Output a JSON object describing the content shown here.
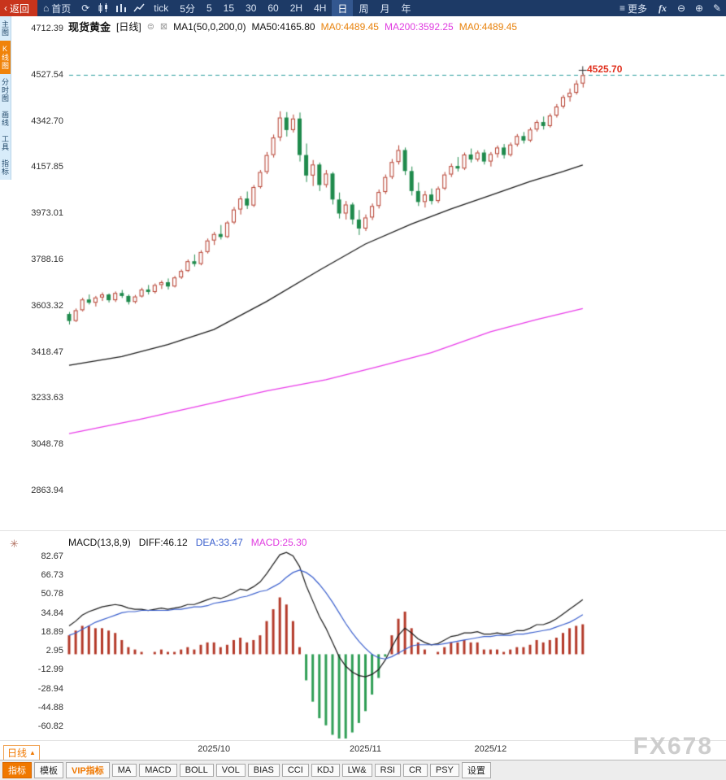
{
  "icons": {
    "back_arrow": "‹",
    "home": "⌂",
    "refresh": "⟳",
    "more": "≡",
    "zoom_out": "⊖",
    "zoom_in": "⊕",
    "pencil": "✎",
    "gear": "✳",
    "checkbox": "⊠",
    "link": "⊜",
    "up_triangle": "▲"
  },
  "topbar": {
    "back_label": "返回",
    "home_label": "首页",
    "tick_label": "tick",
    "periods": [
      {
        "label": "5分",
        "active": false
      },
      {
        "label": "5",
        "active": false
      },
      {
        "label": "15",
        "active": false
      },
      {
        "label": "30",
        "active": false
      },
      {
        "label": "60",
        "active": false
      },
      {
        "label": "2H",
        "active": false
      },
      {
        "label": "4H",
        "active": false
      },
      {
        "label": "日",
        "active": true
      },
      {
        "label": "周",
        "active": false
      },
      {
        "label": "月",
        "active": false
      },
      {
        "label": "年",
        "active": false
      }
    ],
    "more_label": "更多",
    "fx_label": "fx"
  },
  "sidebar": {
    "items": [
      {
        "label": "主图",
        "active": false
      },
      {
        "label": "K线图",
        "active": true
      },
      {
        "label": "分时图",
        "active": false
      },
      {
        "label": "画线",
        "active": false
      },
      {
        "label": "工具",
        "active": false
      },
      {
        "label": "指标",
        "active": false
      }
    ]
  },
  "legend": {
    "symbol": "现货黄金",
    "period_tag": "[日线]",
    "ma_param": "MA1(50,0,200,0)",
    "ma50": "MA50:4165.80",
    "ma0_a": "MA0:4489.45",
    "ma200": "MA200:3592.25",
    "ma0_b": "MA0:4489.45"
  },
  "macd_header": {
    "title": "MACD(13,8,9)",
    "diff": "DIFF:46.12",
    "dea": "DEA:33.47",
    "macd": "MACD:25.30"
  },
  "bottom": {
    "period_label": "日线",
    "watermark": "FX678",
    "tabs": [
      {
        "label": "指标",
        "style": "active"
      },
      {
        "label": "模板",
        "style": "plain"
      },
      {
        "label": "VIP指标",
        "style": "vip"
      },
      {
        "label": "MA",
        "style": "plain"
      },
      {
        "label": "MACD",
        "style": "plain"
      },
      {
        "label": "BOLL",
        "style": "plain"
      },
      {
        "label": "VOL",
        "style": "plain"
      },
      {
        "label": "BIAS",
        "style": "plain"
      },
      {
        "label": "CCI",
        "style": "plain"
      },
      {
        "label": "KDJ",
        "style": "plain"
      },
      {
        "label": "LW&",
        "style": "plain"
      },
      {
        "label": "RSI",
        "style": "plain"
      },
      {
        "label": "CR",
        "style": "plain"
      },
      {
        "label": "PSY",
        "style": "plain"
      },
      {
        "label": "设置",
        "style": "plain"
      }
    ]
  },
  "chart_data": {
    "type": "candlestick+macd",
    "title": "现货黄金 日线",
    "colors": {
      "up": "#b43a2a",
      "down": "#1f8a4c",
      "ma50": "#1a1a1a",
      "ma200": "#e93ce9",
      "dashed": "#2a9d9d",
      "diff": "#1a1a1a",
      "dea": "#3a5fcd",
      "hist_up": "#b43a2a",
      "hist_down": "#2f9e55"
    },
    "x_labels": [
      {
        "label": "2025/10",
        "index": 22
      },
      {
        "label": "2025/11",
        "index": 45
      },
      {
        "label": "2025/12",
        "index": 64
      }
    ],
    "main": {
      "y_ticks": [
        4712.39,
        4527.54,
        4342.7,
        4157.85,
        3973.01,
        3788.16,
        3603.32,
        3418.47,
        3233.63,
        3048.78,
        2863.94
      ],
      "current_price": 4525.7,
      "candles": [
        [
          3570,
          3578,
          3528,
          3542
        ],
        [
          3542,
          3592,
          3538,
          3585
        ],
        [
          3585,
          3635,
          3580,
          3628
        ],
        [
          3628,
          3648,
          3608,
          3615
        ],
        [
          3615,
          3642,
          3600,
          3636
        ],
        [
          3636,
          3656,
          3622,
          3648
        ],
        [
          3648,
          3652,
          3616,
          3625
        ],
        [
          3625,
          3660,
          3618,
          3654
        ],
        [
          3654,
          3666,
          3634,
          3642
        ],
        [
          3642,
          3648,
          3608,
          3618
        ],
        [
          3618,
          3646,
          3612,
          3640
        ],
        [
          3640,
          3675,
          3636,
          3668
        ],
        [
          3668,
          3686,
          3648,
          3658
        ],
        [
          3658,
          3692,
          3652,
          3686
        ],
        [
          3686,
          3704,
          3670,
          3697
        ],
        [
          3697,
          3712,
          3668,
          3680
        ],
        [
          3680,
          3722,
          3676,
          3716
        ],
        [
          3716,
          3748,
          3710,
          3742
        ],
        [
          3742,
          3788,
          3738,
          3781
        ],
        [
          3781,
          3808,
          3760,
          3770
        ],
        [
          3770,
          3825,
          3765,
          3818
        ],
        [
          3818,
          3872,
          3812,
          3864
        ],
        [
          3864,
          3898,
          3846,
          3890
        ],
        [
          3890,
          3926,
          3868,
          3878
        ],
        [
          3878,
          3942,
          3874,
          3936
        ],
        [
          3936,
          3998,
          3930,
          3988
        ],
        [
          3988,
          4042,
          3968,
          4032
        ],
        [
          4032,
          4060,
          3990,
          4004
        ],
        [
          4004,
          4086,
          3998,
          4078
        ],
        [
          4078,
          4146,
          4072,
          4138
        ],
        [
          4138,
          4218,
          4130,
          4206
        ],
        [
          4206,
          4288,
          4196,
          4276
        ],
        [
          4276,
          4381,
          4262,
          4356
        ],
        [
          4356,
          4378,
          4280,
          4306
        ],
        [
          4306,
          4368,
          4296,
          4352
        ],
        [
          4352,
          4376,
          4180,
          4206
        ],
        [
          4206,
          4252,
          4098,
          4124
        ],
        [
          4124,
          4186,
          4082,
          4168
        ],
        [
          4168,
          4176,
          4062,
          4086
        ],
        [
          4086,
          4146,
          4076,
          4132
        ],
        [
          4132,
          4138,
          4008,
          4028
        ],
        [
          4028,
          4056,
          3952,
          3972
        ],
        [
          3972,
          4022,
          3948,
          4008
        ],
        [
          4008,
          4016,
          3928,
          3948
        ],
        [
          3948,
          3986,
          3886,
          3912
        ],
        [
          3912,
          3968,
          3902,
          3956
        ],
        [
          3956,
          4012,
          3946,
          4002
        ],
        [
          4002,
          4068,
          3992,
          4058
        ],
        [
          4058,
          4128,
          4050,
          4118
        ],
        [
          4118,
          4190,
          4110,
          4178
        ],
        [
          4178,
          4245,
          4168,
          4226
        ],
        [
          4226,
          4236,
          4126,
          4142
        ],
        [
          4142,
          4160,
          4044,
          4062
        ],
        [
          4062,
          4096,
          4002,
          4018
        ],
        [
          4018,
          4062,
          3996,
          4048
        ],
        [
          4048,
          4072,
          4008,
          4022
        ],
        [
          4022,
          4080,
          4014,
          4072
        ],
        [
          4072,
          4138,
          4066,
          4128
        ],
        [
          4128,
          4172,
          4118,
          4162
        ],
        [
          4162,
          4198,
          4140,
          4152
        ],
        [
          4152,
          4216,
          4146,
          4208
        ],
        [
          4208,
          4232,
          4176,
          4188
        ],
        [
          4188,
          4224,
          4180,
          4216
        ],
        [
          4216,
          4228,
          4168,
          4180
        ],
        [
          4180,
          4218,
          4160,
          4210
        ],
        [
          4210,
          4244,
          4196,
          4236
        ],
        [
          4236,
          4250,
          4192,
          4206
        ],
        [
          4206,
          4256,
          4200,
          4248
        ],
        [
          4248,
          4290,
          4240,
          4282
        ],
        [
          4282,
          4298,
          4252,
          4264
        ],
        [
          4264,
          4316,
          4258,
          4308
        ],
        [
          4308,
          4346,
          4300,
          4338
        ],
        [
          4338,
          4360,
          4308,
          4322
        ],
        [
          4322,
          4372,
          4316,
          4364
        ],
        [
          4364,
          4410,
          4356,
          4400
        ],
        [
          4400,
          4446,
          4392,
          4438
        ],
        [
          4438,
          4472,
          4420,
          4455
        ],
        [
          4455,
          4505,
          4448,
          4492
        ],
        [
          4492,
          4532,
          4476,
          4525.7
        ]
      ],
      "ma50": [
        [
          0,
          3365
        ],
        [
          8,
          3400
        ],
        [
          15,
          3448
        ],
        [
          22,
          3508
        ],
        [
          30,
          3620
        ],
        [
          38,
          3745
        ],
        [
          45,
          3850
        ],
        [
          52,
          3930
        ],
        [
          58,
          3990
        ],
        [
          64,
          4045
        ],
        [
          70,
          4100
        ],
        [
          75,
          4140
        ],
        [
          78,
          4166
        ]
      ],
      "ma200": [
        [
          0,
          3091
        ],
        [
          11,
          3150
        ],
        [
          22,
          3215
        ],
        [
          30,
          3262
        ],
        [
          39,
          3307
        ],
        [
          47,
          3360
        ],
        [
          55,
          3415
        ],
        [
          64,
          3499
        ],
        [
          71,
          3548
        ],
        [
          78,
          3592
        ]
      ]
    },
    "macd": {
      "y_ticks": [
        82.67,
        66.73,
        50.78,
        34.84,
        18.89,
        2.95,
        -12.99,
        -28.94,
        -44.88,
        -60.82
      ],
      "diff": [
        24,
        28,
        33,
        36,
        38,
        40,
        41,
        42,
        41,
        39,
        38,
        38,
        37,
        38,
        39,
        38,
        39,
        40,
        42,
        42,
        44,
        46,
        48,
        47,
        49,
        52,
        55,
        54,
        57,
        61,
        68,
        76,
        84,
        86,
        83,
        74,
        58,
        45,
        32,
        22,
        10,
        -2,
        -10,
        -15,
        -18,
        -19,
        -17,
        -13,
        -5,
        6,
        16,
        22,
        18,
        13,
        10,
        8,
        9,
        12,
        15,
        16,
        18,
        18,
        19,
        17,
        17,
        18,
        17,
        18,
        20,
        20,
        22,
        25,
        25,
        27,
        30,
        34,
        38,
        42,
        46.12
      ],
      "dea": [
        16,
        18,
        21,
        24,
        27,
        29,
        31,
        33,
        35,
        36,
        36,
        37,
        37,
        37,
        37,
        37,
        38,
        38,
        39,
        40,
        40,
        41,
        43,
        44,
        45,
        46,
        48,
        49,
        51,
        53,
        54,
        57,
        60,
        65,
        69,
        71,
        69,
        65,
        59,
        52,
        44,
        35,
        26,
        18,
        11,
        5,
        0,
        -3,
        -4,
        -2,
        1,
        4,
        7,
        8,
        8,
        8,
        8,
        9,
        10,
        11,
        12,
        13,
        14,
        15,
        15,
        16,
        16,
        16,
        17,
        17,
        18,
        19,
        20,
        21,
        23,
        25,
        27,
        30,
        33.47
      ]
    }
  }
}
